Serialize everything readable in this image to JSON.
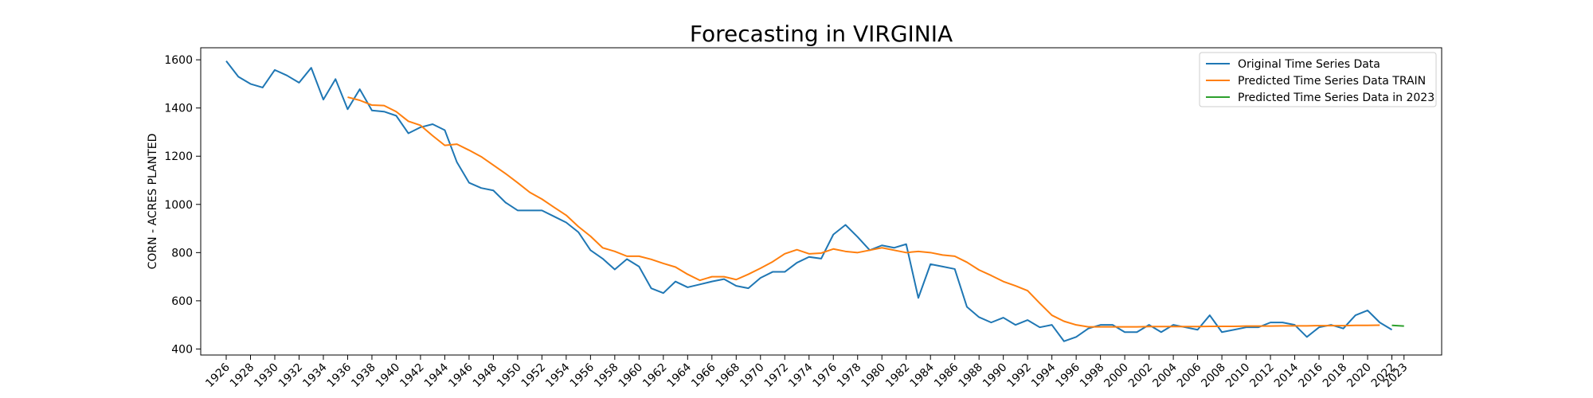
{
  "chart_data": {
    "type": "line",
    "title": "Forecasting in VIRGINIA",
    "xlabel": "",
    "ylabel": "CORN - ACRES PLANTED",
    "xlim": [
      1923.9,
      2026.1
    ],
    "ylim": [
      375,
      1650
    ],
    "yticks": [
      400,
      600,
      800,
      1000,
      1200,
      1400,
      1600
    ],
    "xticks": [
      "1926",
      "1928",
      "1930",
      "1932",
      "1934",
      "1936",
      "1938",
      "1940",
      "1942",
      "1944",
      "1946",
      "1948",
      "1950",
      "1952",
      "1954",
      "1956",
      "1958",
      "1960",
      "1962",
      "1964",
      "1966",
      "1968",
      "1970",
      "1972",
      "1974",
      "1976",
      "1978",
      "1980",
      "1982",
      "1984",
      "1986",
      "1988",
      "1990",
      "1992",
      "1994",
      "1996",
      "1998",
      "2000",
      "2002",
      "2004",
      "2006",
      "2008",
      "2010",
      "2012",
      "2014",
      "2016",
      "2018",
      "2020",
      "2022",
      "2023"
    ],
    "legend_position": "top-right",
    "series": [
      {
        "name": "Original Time Series Data",
        "color": "#1f77b4",
        "x": [
          1926,
          1927,
          1928,
          1929,
          1930,
          1931,
          1932,
          1933,
          1934,
          1935,
          1936,
          1937,
          1938,
          1939,
          1940,
          1941,
          1942,
          1943,
          1944,
          1945,
          1946,
          1947,
          1948,
          1949,
          1950,
          1951,
          1952,
          1953,
          1954,
          1955,
          1956,
          1957,
          1958,
          1959,
          1960,
          1961,
          1962,
          1963,
          1964,
          1965,
          1966,
          1967,
          1968,
          1969,
          1970,
          1971,
          1972,
          1973,
          1974,
          1975,
          1976,
          1977,
          1978,
          1979,
          1980,
          1981,
          1982,
          1983,
          1984,
          1985,
          1986,
          1987,
          1988,
          1989,
          1990,
          1991,
          1992,
          1993,
          1994,
          1995,
          1996,
          1997,
          1998,
          1999,
          2000,
          2001,
          2002,
          2003,
          2004,
          2005,
          2006,
          2007,
          2008,
          2009,
          2010,
          2011,
          2012,
          2013,
          2014,
          2015,
          2016,
          2017,
          2018,
          2019,
          2020,
          2021,
          2022
        ],
        "values": [
          1595,
          1530,
          1500,
          1485,
          1558,
          1535,
          1505,
          1567,
          1435,
          1520,
          1395,
          1478,
          1390,
          1385,
          1368,
          1295,
          1320,
          1333,
          1308,
          1175,
          1090,
          1068,
          1058,
          1008,
          975,
          975,
          975,
          950,
          925,
          885,
          810,
          775,
          730,
          773,
          742,
          652,
          632,
          680,
          656,
          668,
          680,
          690,
          662,
          652,
          695,
          720,
          720,
          758,
          782,
          775,
          875,
          915,
          865,
          810,
          830,
          820,
          835,
          612,
          752,
          742,
          732,
          575,
          532,
          510,
          530,
          500,
          520,
          490,
          500,
          432,
          450,
          485,
          500,
          500,
          470,
          470,
          500,
          470,
          500,
          490,
          480,
          540,
          470,
          480,
          490,
          490,
          510,
          510,
          500,
          450,
          490,
          500,
          485,
          540,
          560,
          510,
          480
        ]
      },
      {
        "name": "Predicted Time Series Data TRAIN",
        "color": "#ff7f0e",
        "x": [
          1936,
          1937,
          1938,
          1939,
          1940,
          1941,
          1942,
          1943,
          1944,
          1945,
          1946,
          1947,
          1948,
          1949,
          1950,
          1951,
          1952,
          1953,
          1954,
          1955,
          1956,
          1957,
          1958,
          1959,
          1960,
          1961,
          1962,
          1963,
          1964,
          1965,
          1966,
          1967,
          1968,
          1969,
          1970,
          1971,
          1972,
          1973,
          1974,
          1975,
          1976,
          1977,
          1978,
          1979,
          1980,
          1981,
          1982,
          1983,
          1984,
          1985,
          1986,
          1987,
          1988,
          1989,
          1990,
          1991,
          1992,
          1993,
          1994,
          1995,
          1996,
          1997,
          1998,
          1999,
          2000,
          2001,
          2002,
          2003,
          2004,
          2005,
          2006,
          2007,
          2008,
          2009,
          2010,
          2011,
          2012,
          2013,
          2014,
          2015,
          2016,
          2017,
          2018,
          2019,
          2020,
          2021
        ],
        "values": [
          1445,
          1432,
          1412,
          1410,
          1385,
          1345,
          1328,
          1285,
          1245,
          1250,
          1225,
          1198,
          1163,
          1128,
          1090,
          1050,
          1022,
          988,
          955,
          908,
          868,
          820,
          805,
          785,
          785,
          772,
          755,
          740,
          710,
          685,
          700,
          700,
          688,
          710,
          735,
          762,
          795,
          812,
          795,
          798,
          815,
          805,
          800,
          810,
          820,
          810,
          800,
          805,
          800,
          790,
          785,
          760,
          728,
          705,
          680,
          662,
          642,
          590,
          540,
          515,
          500,
          492,
          492,
          492,
          492,
          492,
          493,
          493,
          493,
          493,
          493,
          494,
          494,
          494,
          495,
          495,
          495,
          496,
          496,
          496,
          497,
          497,
          497,
          498,
          498,
          499
        ]
      },
      {
        "name": "Predicted Time Series Data in 2023",
        "color": "#2ca02c",
        "x": [
          2022,
          2023
        ],
        "values": [
          498,
          495
        ]
      }
    ]
  }
}
